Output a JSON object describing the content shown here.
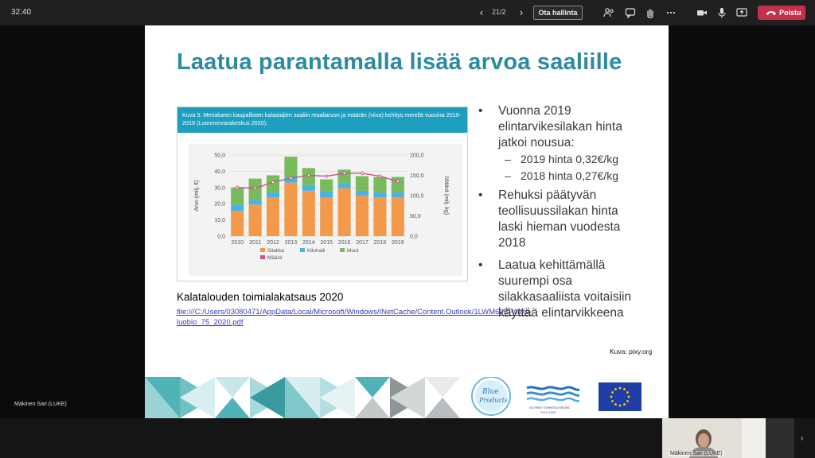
{
  "toolbar": {
    "timer": "32:40",
    "page_counter": "21/2",
    "take_control_label": "Ota hallinta",
    "leave_label": "Poistu",
    "leave_color": "#c4314b",
    "icons": [
      "chevron-left-icon",
      "chevron-right-icon",
      "people-icon",
      "chat-icon",
      "raise-hand-icon",
      "more-icon",
      "camera-icon",
      "microphone-icon",
      "share-screen-icon",
      "phone-hangup-icon"
    ]
  },
  "slide": {
    "title": "Laatua parantamalla lisää arvoa saaliille",
    "title_color": "#2e8aa0",
    "chart_caption": "Kuva 5. Merialueen kaupallisten kalastajien saaliin reaaliarvon ja määrän (viiva) kehitys merellä vuosina 2010-2019 (Luonnonvarakeskus 2020).",
    "source_title": "Kalatalouden toimialakatsaus 2020",
    "source_link": "file:///C:/Users/03080471/AppData/Local/Microsoft/Windows/INetCache/Content.Outlook/1LWM60EP/luke-luobio_75_2020.pdf",
    "bullets": [
      {
        "text_lines": [
          "Vuonna 2019",
          "elintarvikesilakan hinta",
          "jatkoi nousua:"
        ],
        "sub": [
          "2019 hinta 0,32€/kg",
          "2018 hinta 0,27€/kg"
        ]
      },
      {
        "text_lines": [
          "Rehuksi päätyvän",
          "teollisuussilakan hinta",
          "laski hieman vuodesta",
          "2018"
        ],
        "sub": []
      },
      {
        "text_lines": [
          "Laatua kehittämällä",
          "suurempi osa",
          "silakkasaaliista voitaisiin",
          "käyttää elintarvikkeena"
        ],
        "sub": []
      }
    ],
    "bullet_symbol": "•",
    "sub_symbol": "–",
    "image_credit": "Kuva: pixy.org"
  },
  "chart_data": {
    "type": "bar",
    "stacked": true,
    "categories": [
      "2010",
      "2011",
      "2012",
      "2013",
      "2014",
      "2015",
      "2016",
      "2017",
      "2018",
      "2019"
    ],
    "series": [
      {
        "name": "Silakka",
        "color": "#f29a4a",
        "values": [
          15.5,
          19.5,
          24.0,
          33.0,
          28.0,
          24.0,
          29.5,
          25.0,
          24.0,
          24.0
        ]
      },
      {
        "name": "Kilohaili",
        "color": "#4bb3e2",
        "values": [
          4.0,
          3.0,
          3.0,
          3.0,
          3.5,
          3.5,
          3.0,
          3.0,
          3.0,
          3.0
        ]
      },
      {
        "name": "Muut",
        "color": "#77bb5a",
        "values": [
          10.5,
          13.0,
          10.5,
          13.0,
          10.5,
          7.5,
          8.5,
          9.0,
          9.5,
          9.5
        ]
      }
    ],
    "line": {
      "name": "Määrä",
      "color": "#cf4f93",
      "axis": "right",
      "values": [
        120,
        118,
        133,
        143,
        150,
        148,
        155,
        155,
        148,
        135
      ]
    },
    "y_left": {
      "label": "Arvo (milj. €)",
      "min": 0,
      "max": 50,
      "ticks": [
        "0,0",
        "10,0",
        "20,0",
        "30,0",
        "40,0",
        "50,0"
      ]
    },
    "y_right": {
      "label": "Määrä (milj. kg)",
      "min": 0,
      "max": 200,
      "ticks": [
        "0,0",
        "50,0",
        "100,0",
        "150,0",
        "200,0"
      ]
    },
    "legend": [
      "Silakka",
      "Kilohaili",
      "Muut",
      "Määrä"
    ],
    "legend_position": "bottom",
    "grid": true
  },
  "footer": {
    "logo_text": "Blue Products",
    "program_text": "SUOMEN TOIMINTAOHJELMA 2014-2020"
  },
  "participants": {
    "self_name": "Mäkinen Sari (LUKE)",
    "tile_name": "Mäkinen Sari (LUKE)"
  }
}
